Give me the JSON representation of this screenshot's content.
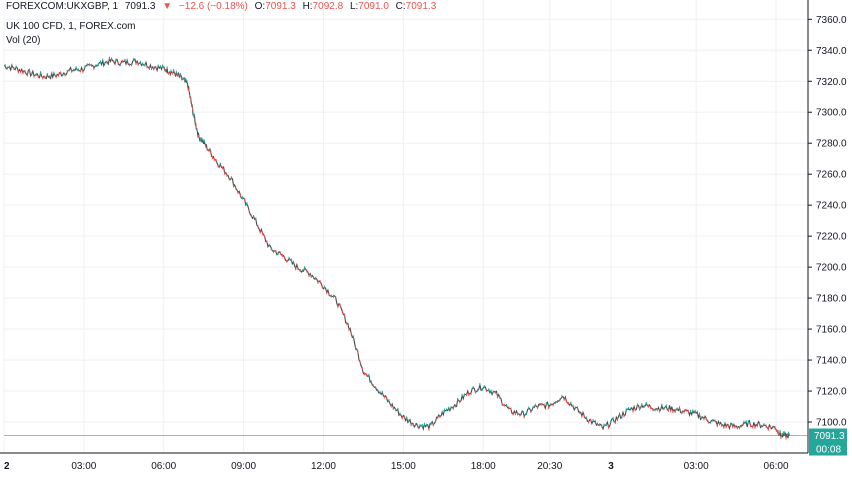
{
  "header": {
    "symbol": "FOREXCOM:UKXGBP, 1",
    "last": "7091.3",
    "change": "−12.6 (−0.18%)",
    "o_label": "O:",
    "o_value": "7091.3",
    "h_label": "H:",
    "h_value": "7092.8",
    "l_label": "L:",
    "l_value": "7091.0",
    "c_label": "C:",
    "c_value": "7091.3",
    "title_line": "UK 100 CFD, 1, FOREX.com",
    "volume_line": "Vol (20)"
  },
  "price_tag": {
    "price": "7091.3",
    "countdown": "00:08"
  },
  "colors": {
    "up": "#26a69a",
    "down": "#ef5350",
    "line": "#4a4a4a",
    "grid": "#eef0f3",
    "tag": "#26a69a"
  },
  "chart_data": {
    "type": "line",
    "ylim": [
      7080,
      7366
    ],
    "y_ticks": [
      7100,
      7120,
      7140,
      7160,
      7180,
      7200,
      7220,
      7240,
      7260,
      7280,
      7300,
      7320,
      7340,
      7360
    ],
    "y_tick_labels": [
      "7100.0",
      "7120.0",
      "7140.0",
      "7160.0",
      "7180.0",
      "7200.0",
      "7220.0",
      "7240.0",
      "7260.0",
      "7280.0",
      "7300.0",
      "7320.0",
      "7340.0",
      "7360.0"
    ],
    "x_tick_labels": [
      "2",
      "03:00",
      "06:00",
      "09:00",
      "12:00",
      "15:00",
      "18:00",
      "20:30",
      "3",
      "03:00",
      "06:00"
    ],
    "x_tick_hours": [
      0,
      3,
      6,
      9,
      12,
      15,
      18,
      20.5,
      22.8,
      26,
      29
    ],
    "xlim_hours": [
      0,
      30.2
    ],
    "current_price": 7091.3,
    "series": [
      {
        "x": [
          0,
          0.5,
          1,
          1.5,
          2,
          2.5,
          3,
          3.5,
          4,
          4.5,
          5,
          5.5,
          6,
          6.3,
          6.6,
          6.9,
          7.1,
          7.3,
          7.6,
          8,
          8.5,
          9,
          9.5,
          10,
          10.5,
          11,
          11.5,
          12,
          12.5,
          13,
          13.5,
          14,
          14.5,
          15,
          15.5,
          16,
          16.5,
          17,
          17.5,
          18,
          18.5,
          19,
          19.5,
          20,
          20.5,
          21,
          21.5,
          22,
          22.5,
          23,
          23.5,
          24,
          24.5,
          25,
          25.5,
          26,
          26.5,
          27,
          27.5,
          28,
          28.5,
          29,
          29.2,
          29.5
        ],
        "y": [
          7330,
          7328,
          7325,
          7323,
          7324,
          7327,
          7328,
          7331,
          7333,
          7332,
          7333,
          7330,
          7328,
          7326,
          7323,
          7318,
          7300,
          7285,
          7278,
          7268,
          7258,
          7243,
          7228,
          7212,
          7207,
          7200,
          7196,
          7188,
          7178,
          7160,
          7133,
          7122,
          7112,
          7103,
          7098,
          7097,
          7106,
          7112,
          7120,
          7123,
          7118,
          7107,
          7105,
          7110,
          7111,
          7117,
          7108,
          7101,
          7096,
          7102,
          7108,
          7111,
          7109,
          7109,
          7107,
          7105,
          7101,
          7098,
          7097,
          7099,
          7098,
          7096,
          7091,
          7091.3
        ]
      }
    ]
  }
}
